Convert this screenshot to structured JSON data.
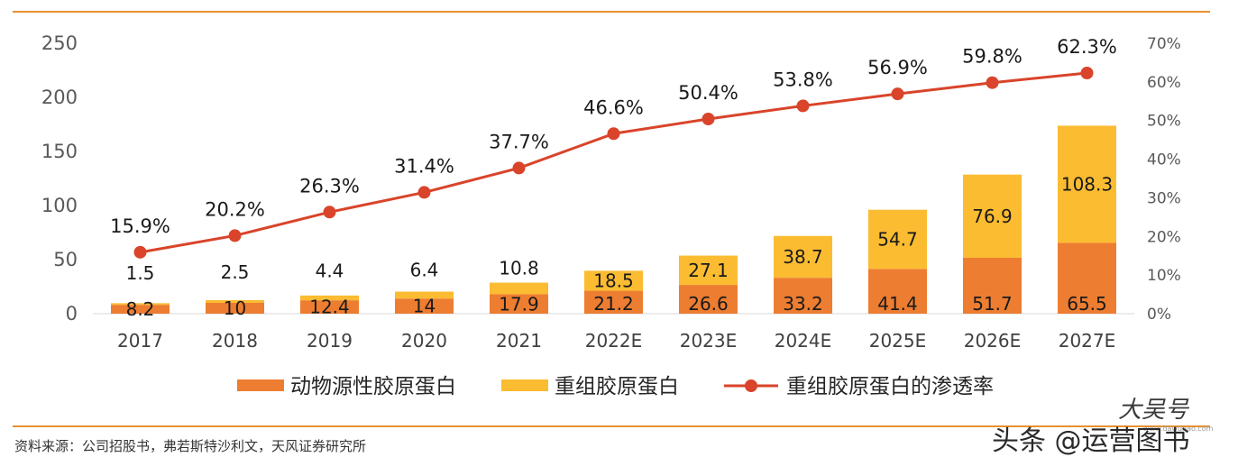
{
  "colors": {
    "rule": "#e8902e",
    "series_1": "#ed7d31",
    "series_2": "#fbbc32",
    "series_3": "#d9442a"
  },
  "chart_data": {
    "type": "bar",
    "stacked": true,
    "categories": [
      "2017",
      "2018",
      "2019",
      "2020",
      "2021",
      "2022E",
      "2023E",
      "2024E",
      "2025E",
      "2026E",
      "2027E"
    ],
    "series": [
      {
        "name": "动物源性胶原蛋白",
        "type": "bar",
        "axis": "left",
        "values": [
          8.2,
          10,
          12.4,
          14,
          17.9,
          21.2,
          26.6,
          33.2,
          41.4,
          51.7,
          65.5
        ],
        "labels": [
          "8.2",
          "10",
          "12.4",
          "14",
          "17.9",
          "21.2",
          "26.6",
          "33.2",
          "41.4",
          "51.7",
          "65.5"
        ]
      },
      {
        "name": "重组胶原蛋白",
        "type": "bar",
        "axis": "left",
        "values": [
          1.5,
          2.5,
          4.4,
          6.4,
          10.8,
          18.5,
          27.1,
          38.7,
          54.7,
          76.9,
          108.3
        ],
        "labels": [
          "1.5",
          "2.5",
          "4.4",
          "6.4",
          "10.8",
          "18.5",
          "27.1",
          "38.7",
          "54.7",
          "76.9",
          "108.3"
        ]
      },
      {
        "name": "重组胶原蛋白的渗透率",
        "type": "line",
        "axis": "right",
        "values": [
          15.9,
          20.2,
          26.3,
          31.4,
          37.7,
          46.6,
          50.4,
          53.8,
          56.9,
          59.8,
          62.3
        ],
        "labels": [
          "15.9%",
          "20.2%",
          "26.3%",
          "31.4%",
          "37.7%",
          "46.6%",
          "50.4%",
          "53.8%",
          "56.9%",
          "59.8%",
          "62.3%"
        ]
      }
    ],
    "y_left": {
      "min": 0,
      "max": 250,
      "ticks": [
        "0",
        "50",
        "100",
        "150",
        "200",
        "250"
      ]
    },
    "y_right": {
      "min": 0,
      "max": 70,
      "ticks": [
        "0%",
        "10%",
        "20%",
        "30%",
        "40%",
        "50%",
        "60%",
        "70%"
      ]
    },
    "grid": false,
    "legend_position": "bottom"
  },
  "source_note": "资料来源：公司招股书，弗若斯特沙利文，天风证券研究所",
  "watermark": {
    "main": "头条 @运营图书",
    "corner": "大吴号",
    "small": "www.dawuhao.com"
  }
}
